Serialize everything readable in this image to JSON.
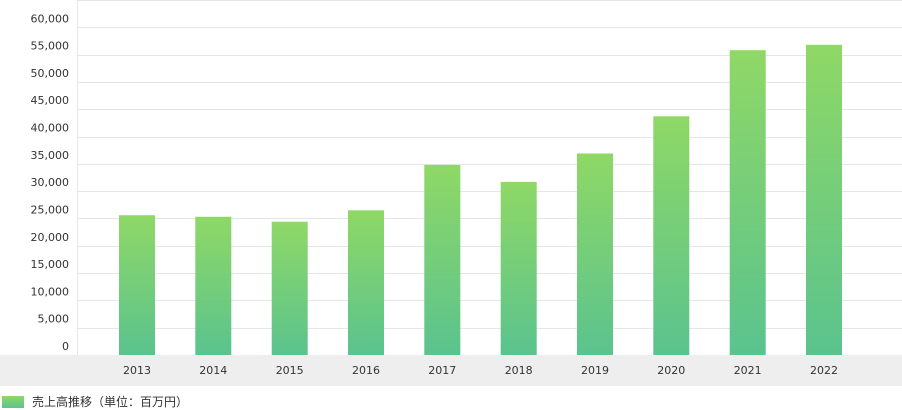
{
  "chart_data": {
    "type": "bar",
    "categories": [
      "2013",
      "2014",
      "2015",
      "2016",
      "2017",
      "2018",
      "2019",
      "2020",
      "2021",
      "2022"
    ],
    "series": [
      {
        "name": "売上高推移（単位：百万円）",
        "values": [
          25600,
          25300,
          24400,
          26500,
          34800,
          31700,
          36900,
          43700,
          55800,
          56800
        ]
      }
    ],
    "ylim": [
      0,
      65000
    ],
    "yticks": [
      "0",
      "5,000",
      "10,000",
      "15,000",
      "20,000",
      "25,000",
      "30,000",
      "35,000",
      "40,000",
      "45,000",
      "50,000",
      "55,000",
      "60,000"
    ],
    "ytick_values": [
      0,
      5000,
      10000,
      15000,
      20000,
      25000,
      30000,
      35000,
      40000,
      45000,
      50000,
      55000,
      60000
    ],
    "grid": true,
    "legend_position": "bottom-left",
    "colors": {
      "bar_top": "#8fd866",
      "bar_bottom": "#5ac38e",
      "grid": "#e6e6e6",
      "axis_band": "#eeeeee"
    }
  }
}
